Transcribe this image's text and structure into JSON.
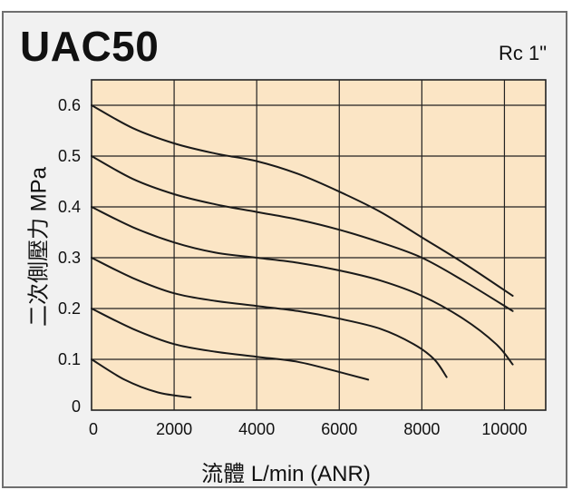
{
  "chart_data": {
    "type": "line",
    "title": "UAC50",
    "subtitle": "Rc 1\"",
    "xlabel": "流體 L/min (ANR)",
    "ylabel": "二次側壓力 MPa",
    "xlim": [
      0,
      11000
    ],
    "ylim": [
      0,
      0.65
    ],
    "x_ticks": [
      "0",
      "2000",
      "4000",
      "6000",
      "8000",
      "10000"
    ],
    "y_ticks": [
      "0",
      "0.1",
      "0.2",
      "0.3",
      "0.4",
      "0.5",
      "0.6"
    ],
    "grid": true,
    "background": "#fbe5c5",
    "line_color": "#1a1a1a",
    "series": [
      {
        "x": [
          0,
          800,
          1600,
          2400
        ],
        "values": [
          0.1,
          0.06,
          0.035,
          0.025
        ]
      },
      {
        "x": [
          0,
          1000,
          2000,
          3000,
          4000,
          5000,
          6000,
          6700
        ],
        "values": [
          0.2,
          0.16,
          0.13,
          0.115,
          0.105,
          0.095,
          0.075,
          0.06
        ]
      },
      {
        "x": [
          0,
          1000,
          2000,
          3000,
          4000,
          5000,
          6000,
          7000,
          7800,
          8300,
          8600
        ],
        "values": [
          0.3,
          0.26,
          0.23,
          0.215,
          0.205,
          0.195,
          0.18,
          0.16,
          0.13,
          0.1,
          0.065
        ]
      },
      {
        "x": [
          0,
          1000,
          2000,
          3000,
          4000,
          5000,
          6000,
          7000,
          8000,
          9000,
          9800,
          10200
        ],
        "values": [
          0.4,
          0.36,
          0.33,
          0.31,
          0.3,
          0.29,
          0.275,
          0.255,
          0.225,
          0.18,
          0.13,
          0.09
        ]
      },
      {
        "x": [
          0,
          1000,
          2000,
          3000,
          4000,
          5000,
          6000,
          7000,
          8000,
          9000,
          10200
        ],
        "values": [
          0.5,
          0.455,
          0.425,
          0.405,
          0.39,
          0.375,
          0.355,
          0.33,
          0.3,
          0.255,
          0.195
        ]
      },
      {
        "x": [
          0,
          1000,
          2000,
          3000,
          4000,
          5000,
          6000,
          7000,
          8000,
          9000,
          10200
        ],
        "values": [
          0.6,
          0.555,
          0.525,
          0.505,
          0.49,
          0.465,
          0.43,
          0.39,
          0.34,
          0.29,
          0.225
        ]
      }
    ]
  }
}
